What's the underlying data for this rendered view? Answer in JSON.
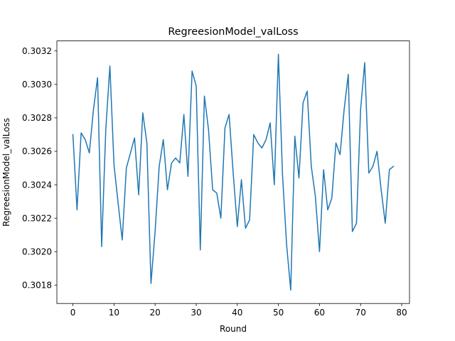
{
  "chart_data": {
    "type": "line",
    "title": "RegreesionModel_valLoss",
    "xlabel": "Round",
    "ylabel": "RegreesionModel_valLoss",
    "xlim": [
      -3.9,
      81.9
    ],
    "ylim": [
      0.30169,
      0.30326
    ],
    "x_ticks": [
      0,
      10,
      20,
      30,
      40,
      50,
      60,
      70,
      80
    ],
    "x_tick_labels": [
      "0",
      "10",
      "20",
      "30",
      "40",
      "50",
      "60",
      "70",
      "80"
    ],
    "y_ticks": [
      0.3018,
      0.302,
      0.3022,
      0.3024,
      0.3026,
      0.3028,
      0.303,
      0.3032
    ],
    "y_tick_labels": [
      "0.3018",
      "0.3020",
      "0.3022",
      "0.3024",
      "0.3026",
      "0.3028",
      "0.3030",
      "0.3032"
    ],
    "grid": false,
    "series": [
      {
        "color": "#1f77b4",
        "x": [
          0,
          1,
          2,
          3,
          4,
          5,
          6,
          7,
          8,
          9,
          10,
          11,
          12,
          13,
          14,
          15,
          16,
          17,
          18,
          19,
          20,
          21,
          22,
          23,
          24,
          25,
          26,
          27,
          28,
          29,
          30,
          31,
          32,
          33,
          34,
          35,
          36,
          37,
          38,
          39,
          40,
          41,
          42,
          43,
          44,
          45,
          46,
          47,
          48,
          49,
          50,
          51,
          52,
          53,
          54,
          55,
          56,
          57,
          58,
          59,
          60,
          61,
          62,
          63,
          64,
          65,
          66,
          67,
          68,
          69,
          70,
          71,
          72,
          73,
          74,
          75,
          76,
          77,
          78
        ],
        "values": [
          0.3027,
          0.30225,
          0.30271,
          0.30267,
          0.30259,
          0.30285,
          0.30304,
          0.30203,
          0.30273,
          0.30311,
          0.30252,
          0.30229,
          0.30207,
          0.3025,
          0.30259,
          0.30268,
          0.30234,
          0.30283,
          0.30265,
          0.30181,
          0.30212,
          0.30251,
          0.30267,
          0.30237,
          0.30253,
          0.30256,
          0.30253,
          0.30282,
          0.30245,
          0.30308,
          0.30299,
          0.30201,
          0.30293,
          0.30273,
          0.30237,
          0.30235,
          0.3022,
          0.30274,
          0.30282,
          0.30247,
          0.30215,
          0.30243,
          0.30214,
          0.30219,
          0.3027,
          0.30265,
          0.30262,
          0.30267,
          0.30277,
          0.3024,
          0.30318,
          0.30246,
          0.30204,
          0.30177,
          0.30269,
          0.30244,
          0.30289,
          0.30296,
          0.30251,
          0.30233,
          0.302,
          0.30249,
          0.30225,
          0.30232,
          0.30265,
          0.30258,
          0.30285,
          0.30306,
          0.30212,
          0.30217,
          0.30285,
          0.30313,
          0.30247,
          0.30251,
          0.3026,
          0.30237,
          0.30217,
          0.30249,
          0.30251
        ]
      }
    ]
  }
}
